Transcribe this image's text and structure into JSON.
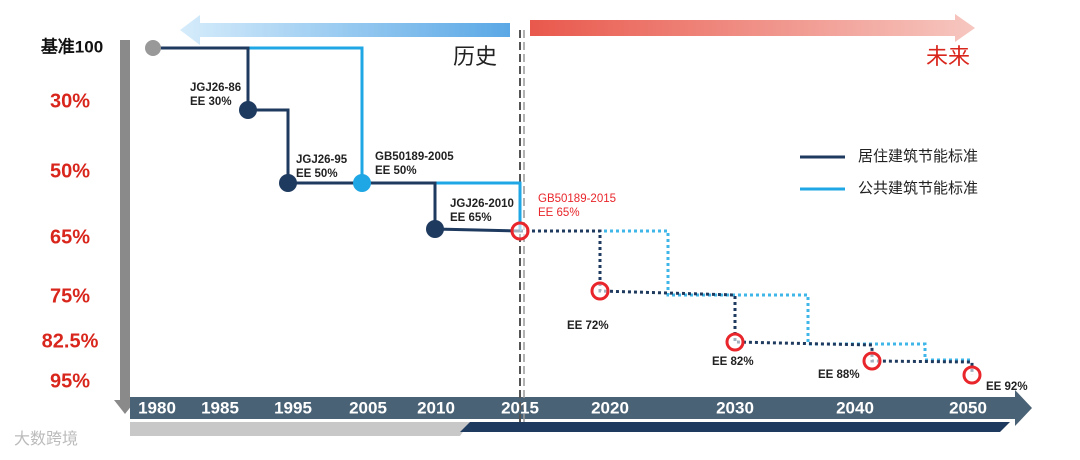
{
  "header": {
    "history": "历史",
    "future": "未来"
  },
  "y_levels": [
    "基准100",
    "30%",
    "50%",
    "65%",
    "75%",
    "82.5%",
    "95%"
  ],
  "x_years": [
    "1980",
    "1985",
    "1995",
    "2005",
    "2010",
    "2015",
    "2020",
    "2030",
    "2040",
    "2050"
  ],
  "legend": [
    {
      "label": "居住建筑节能标准",
      "color": "#1f3a5f"
    },
    {
      "label": "公共建筑节能标准",
      "color": "#1ea7e4"
    }
  ],
  "milestones": [
    {
      "lines": [
        "JGJ26-86",
        "EE 30%"
      ]
    },
    {
      "lines": [
        "JGJ26-95",
        "EE 50%"
      ]
    },
    {
      "lines": [
        "GB50189-2005",
        "EE 50%"
      ]
    },
    {
      "lines": [
        "JGJ26-2010",
        "EE 65%"
      ]
    },
    {
      "lines": [
        "GB50189-2015",
        "EE 65%"
      ]
    },
    {
      "lines": [
        "EE 72%"
      ]
    },
    {
      "lines": [
        "EE 82%"
      ]
    },
    {
      "lines": [
        "EE 88%"
      ]
    },
    {
      "lines": [
        "EE 92%"
      ]
    }
  ],
  "watermark": "大数跨境"
}
